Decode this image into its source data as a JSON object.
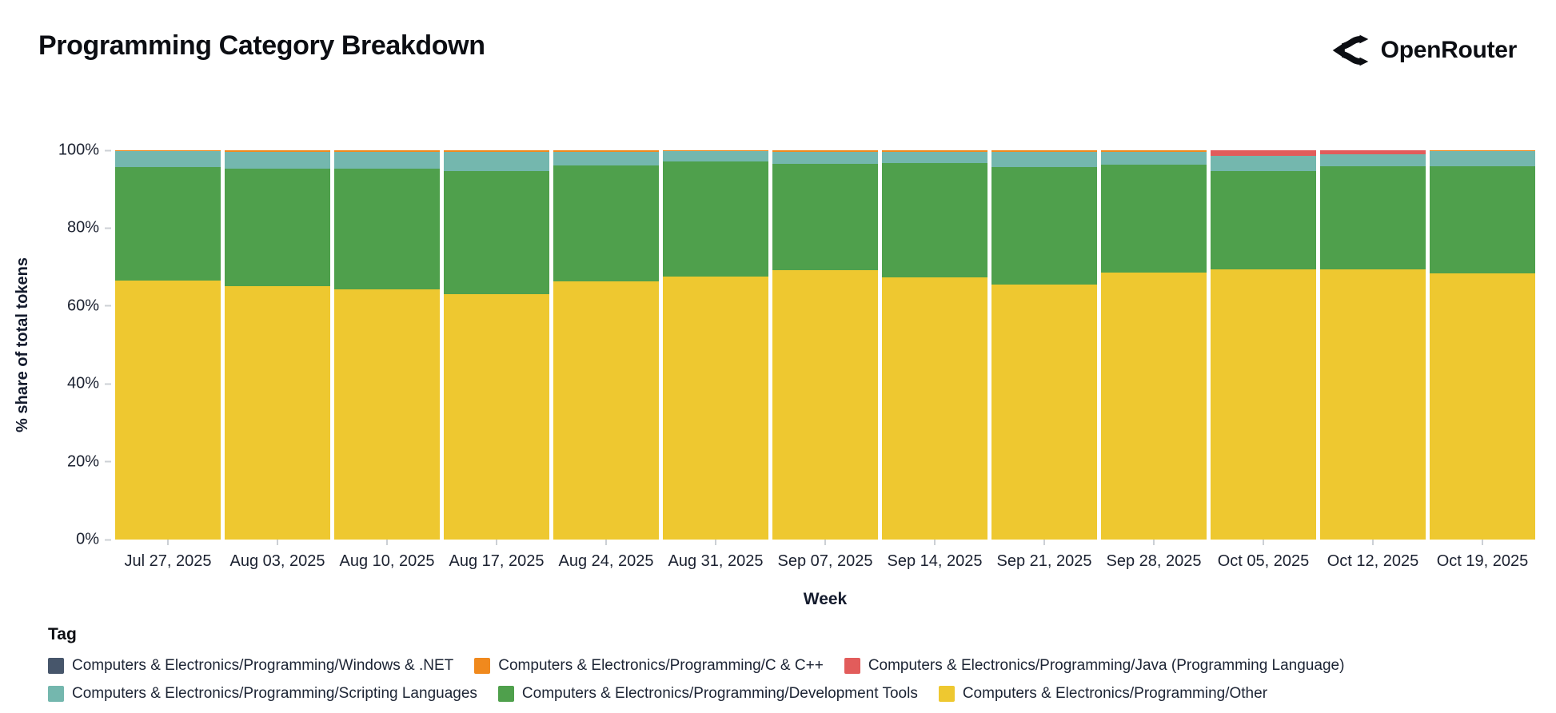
{
  "header": {
    "title": "Programming Category Breakdown",
    "brand": "OpenRouter"
  },
  "chart_data": {
    "type": "bar",
    "variant": "stacked-100-percent",
    "title": "Programming Category Breakdown",
    "xlabel": "Week",
    "ylabel": "% share of total tokens",
    "ylim": [
      0,
      100
    ],
    "yticks": [
      "0%",
      "20%",
      "40%",
      "60%",
      "80%",
      "100%"
    ],
    "grid": false,
    "legend_position": "bottom",
    "categories": [
      "Jul 27, 2025",
      "Aug 03, 2025",
      "Aug 10, 2025",
      "Aug 17, 2025",
      "Aug 24, 2025",
      "Aug 31, 2025",
      "Sep 07, 2025",
      "Sep 14, 2025",
      "Sep 21, 2025",
      "Sep 28, 2025",
      "Oct 05, 2025",
      "Oct 12, 2025",
      "Oct 19, 2025"
    ],
    "stack_order_note": "series listed bottom-to-top of each bar, values are percent of total tokens",
    "series": [
      {
        "name": "Computers & Electronics/Programming/Other",
        "color": "#eec830",
        "values": [
          66.5,
          65.0,
          64.3,
          63.0,
          66.3,
          67.5,
          69.3,
          67.3,
          65.5,
          68.5,
          69.4,
          69.5,
          68.3
        ]
      },
      {
        "name": "Computers & Electronics/Programming/Development Tools",
        "color": "#4fa04c",
        "values": [
          29.2,
          30.3,
          31.0,
          31.7,
          29.8,
          29.6,
          27.3,
          29.4,
          30.2,
          27.9,
          25.3,
          26.3,
          27.5
        ]
      },
      {
        "name": "Computers & Electronics/Programming/Scripting Languages",
        "color": "#74b7ae",
        "values": [
          4.0,
          4.3,
          4.3,
          4.9,
          3.5,
          2.6,
          3.0,
          2.9,
          3.9,
          3.2,
          3.8,
          3.1,
          3.9
        ]
      },
      {
        "name": "Computers & Electronics/Programming/Java (Programming Language)",
        "color": "#e25c5b",
        "values": [
          0,
          0,
          0,
          0,
          0,
          0,
          0,
          0,
          0,
          0,
          1.5,
          1.1,
          0
        ]
      },
      {
        "name": "Computers & Electronics/Programming/C & C++",
        "color": "#f0891d",
        "values": [
          0.3,
          0.4,
          0.4,
          0.4,
          0.4,
          0.3,
          0.4,
          0.4,
          0.4,
          0.4,
          0,
          0,
          0.3
        ]
      },
      {
        "name": "Computers & Electronics/Programming/Windows & .NET",
        "color": "#47566b",
        "pattern": "dots",
        "values": [
          0,
          0,
          0,
          0,
          0,
          0,
          0,
          0,
          0,
          0,
          0,
          0,
          0
        ]
      }
    ]
  },
  "legend": {
    "title": "Tag",
    "items": [
      {
        "label": "Computers & Electronics/Programming/Windows & .NET",
        "color": "#47566b",
        "pattern": "dots"
      },
      {
        "label": "Computers & Electronics/Programming/C & C++",
        "color": "#f0891d"
      },
      {
        "label": "Computers & Electronics/Programming/Java (Programming Language)",
        "color": "#e25c5b"
      },
      {
        "label": "Computers & Electronics/Programming/Scripting Languages",
        "color": "#74b7ae"
      },
      {
        "label": "Computers & Electronics/Programming/Development Tools",
        "color": "#4fa04c"
      },
      {
        "label": "Computers & Electronics/Programming/Other",
        "color": "#eec830"
      }
    ]
  },
  "colors": {
    "title_text": "#0c0e13",
    "axis_text": "#1b2130",
    "tick_mark": "#ccd0d5",
    "background": "#ffffff"
  }
}
